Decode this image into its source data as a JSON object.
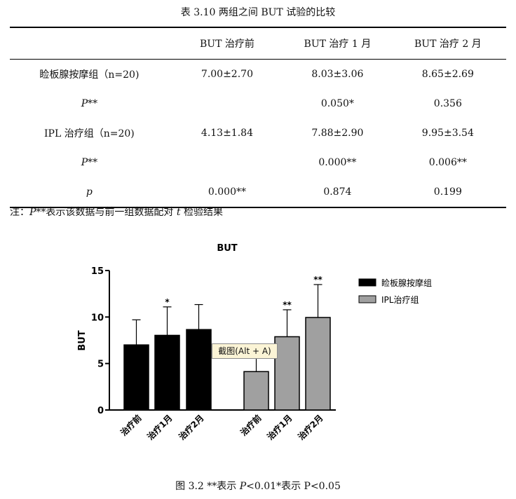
{
  "table": {
    "caption": "表 3.10  两组之间 BUT 试验的比较",
    "headers": [
      "",
      "BUT 治疗前",
      "BUT 治疗 1 月",
      "BUT 治疗 2 月"
    ],
    "rows": [
      {
        "label": "睑板腺按摩组（n=20)",
        "cells": [
          "7.00±2.70",
          "8.03±3.06",
          "8.65±2.69"
        ]
      },
      {
        "label_italic": "P",
        "label_rest": "**",
        "cells": [
          "",
          "0.050*",
          "0.356"
        ]
      },
      {
        "label": "IPL 治疗组（n=20)",
        "cells": [
          "4.13±1.84",
          "7.88±2.90",
          "9.95±3.54"
        ]
      },
      {
        "label_italic": "P",
        "label_rest": "**",
        "cells": [
          "",
          "0.000**",
          "0.006**"
        ]
      },
      {
        "label_italic": "p",
        "label_rest": "",
        "cells": [
          "0.000**",
          "0.874",
          "0.199"
        ]
      }
    ],
    "note_prefix": "注：",
    "note_italic_p": "P",
    "note_mid": "**表示该数据与前一组数据配对 ",
    "note_italic_t": "t",
    "note_suffix": " 检验结果"
  },
  "tooltip": "截图(Alt + A)",
  "figure_caption": {
    "prefix": "图 3.2 **表示 ",
    "italic": "P",
    "suffix": "<0.01*表示 P<0.05"
  },
  "chart_data": {
    "type": "bar",
    "title": "BUT",
    "ylabel": "BUT",
    "xlabel": "",
    "ylim": [
      0,
      15
    ],
    "yticks": [
      0,
      5,
      10,
      15
    ],
    "grid": false,
    "legend_position": "right",
    "series": [
      {
        "name": "睑板腺按摩组",
        "color": "#000000",
        "categories": [
          "治疗前",
          "治疗1月",
          "治疗2月"
        ],
        "values": [
          7.0,
          8.03,
          8.65
        ],
        "errors": [
          2.7,
          3.06,
          2.69
        ],
        "significance": [
          "",
          "*",
          ""
        ]
      },
      {
        "name": "IPL治疗组",
        "color": "#a0a0a0",
        "categories": [
          "治疗前",
          "治疗1月",
          "治疗2月"
        ],
        "values": [
          4.13,
          7.88,
          9.95
        ],
        "errors": [
          1.84,
          2.9,
          3.54
        ],
        "significance": [
          "",
          "**",
          "**"
        ]
      }
    ]
  }
}
